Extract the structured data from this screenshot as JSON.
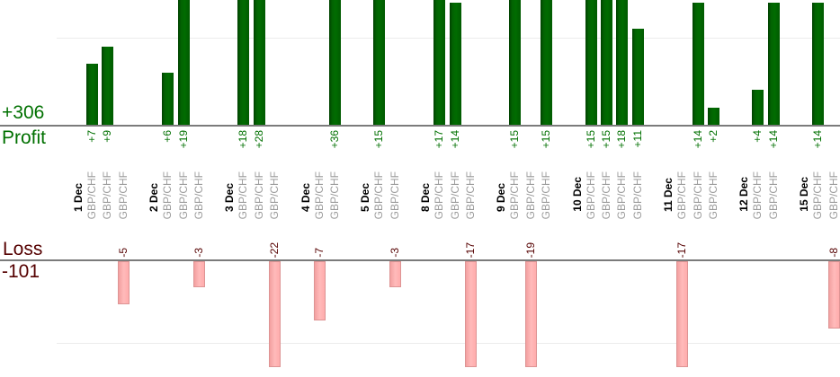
{
  "chart_data": {
    "type": "bar",
    "title": "",
    "currency_pair": "GBP/CHF",
    "layout_hint": {
      "orientation": "vertical bars, profit subchart above shared label row, loss subchart below",
      "grid": "one light gridline per subchart",
      "clipping": "bars taller than visible area are clipped at top/bottom edges"
    },
    "profit": {
      "axis_label": "Profit",
      "total": "+306",
      "gridline_value": 10,
      "visible_max": 14.3,
      "bar_color": "#006600",
      "text_color": "#007000"
    },
    "loss": {
      "axis_label": "Loss",
      "total": "-101",
      "gridline_value": -10,
      "visible_min": -12.7,
      "bar_color": "#ffacac",
      "text_color": "#550000"
    },
    "groups": [
      {
        "date": "1 Dec",
        "trades": [
          {
            "symbol": "GBP/CHF",
            "value": 7
          },
          {
            "symbol": "GBP/CHF",
            "value": 9
          },
          {
            "symbol": "GBP/CHF",
            "value": -5
          }
        ]
      },
      {
        "date": "2 Dec",
        "trades": [
          {
            "symbol": "GBP/CHF",
            "value": 6
          },
          {
            "symbol": "GBP/CHF",
            "value": 19
          },
          {
            "symbol": "GBP/CHF",
            "value": -3
          }
        ]
      },
      {
        "date": "3 Dec",
        "trades": [
          {
            "symbol": "GBP/CHF",
            "value": 18
          },
          {
            "symbol": "GBP/CHF",
            "value": 28
          },
          {
            "symbol": "GBP/CHF",
            "value": -22
          }
        ]
      },
      {
        "date": "4 Dec",
        "trades": [
          {
            "symbol": "GBP/CHF",
            "value": -7
          },
          {
            "symbol": "GBP/CHF",
            "value": 36
          }
        ]
      },
      {
        "date": "5 Dec",
        "trades": [
          {
            "symbol": "GBP/CHF",
            "value": 15
          },
          {
            "symbol": "GBP/CHF",
            "value": -3
          }
        ]
      },
      {
        "date": "8 Dec",
        "trades": [
          {
            "symbol": "GBP/CHF",
            "value": 17
          },
          {
            "symbol": "GBP/CHF",
            "value": 14
          },
          {
            "symbol": "GBP/CHF",
            "value": -17
          }
        ]
      },
      {
        "date": "9 Dec",
        "trades": [
          {
            "symbol": "GBP/CHF",
            "value": 15
          },
          {
            "symbol": "GBP/CHF",
            "value": -19
          },
          {
            "symbol": "GBP/CHF",
            "value": 15
          }
        ]
      },
      {
        "date": "10 Dec",
        "trades": [
          {
            "symbol": "GBP/CHF",
            "value": 15
          },
          {
            "symbol": "GBP/CHF",
            "value": 15
          },
          {
            "symbol": "GBP/CHF",
            "value": 18
          },
          {
            "symbol": "GBP/CHF",
            "value": 11
          }
        ]
      },
      {
        "date": "11 Dec",
        "trades": [
          {
            "symbol": "GBP/CHF",
            "value": -17
          },
          {
            "symbol": "GBP/CHF",
            "value": 14
          },
          {
            "symbol": "GBP/CHF",
            "value": 2
          }
        ]
      },
      {
        "date": "12 Dec",
        "trades": [
          {
            "symbol": "GBP/CHF",
            "value": 4
          },
          {
            "symbol": "GBP/CHF",
            "value": 14
          }
        ]
      },
      {
        "date": "15 Dec",
        "trades": [
          {
            "symbol": "GBP/CHF",
            "value": 14
          },
          {
            "symbol": "GBP/CHF",
            "value": -8
          }
        ]
      }
    ]
  }
}
